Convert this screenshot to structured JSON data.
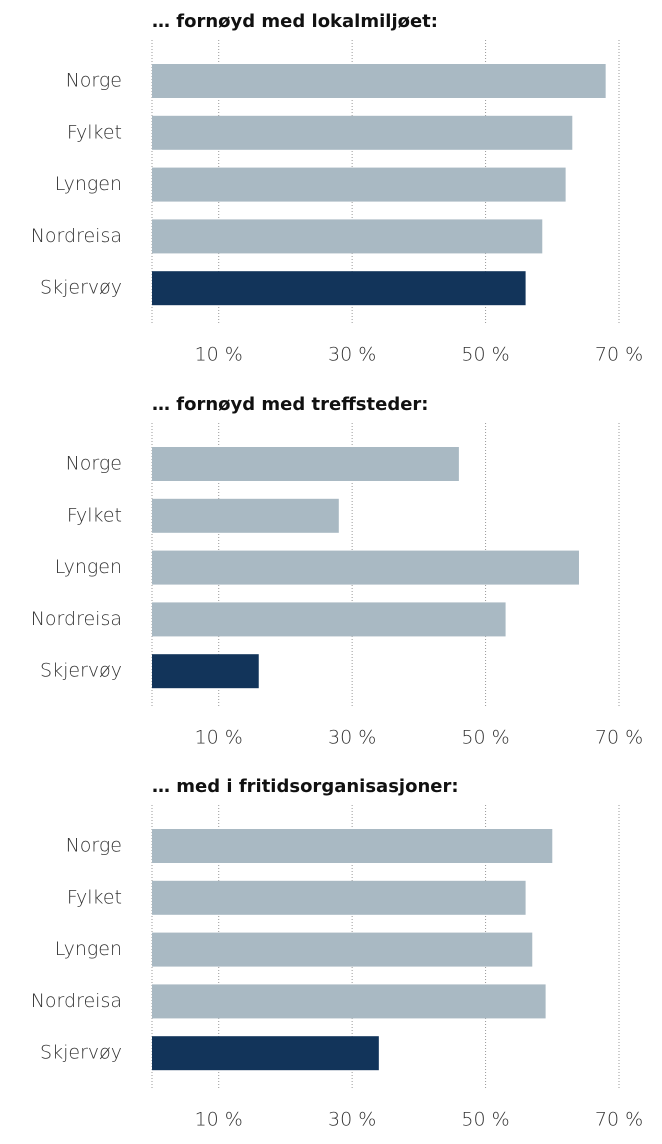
{
  "chart_data": [
    {
      "type": "bar",
      "orientation": "horizontal",
      "title": "… fornøyd med lokalmiljøet:",
      "categories": [
        "Norge",
        "Fylket",
        "Lyngen",
        "Nordreisa",
        "Skjervøy"
      ],
      "values": [
        68,
        63,
        62,
        58.5,
        56
      ],
      "colors": [
        "#a9b9c3",
        "#a9b9c3",
        "#a9b9c3",
        "#a9b9c3",
        "#12345a"
      ],
      "xlim": [
        0,
        70
      ],
      "xticks": [
        {
          "value": 10,
          "label": "10 %"
        },
        {
          "value": 30,
          "label": "30 %"
        },
        {
          "value": 50,
          "label": "50 %"
        },
        {
          "value": 70,
          "label": "70 %"
        }
      ],
      "grid": true
    },
    {
      "type": "bar",
      "orientation": "horizontal",
      "title": "… fornøyd med treffsteder:",
      "categories": [
        "Norge",
        "Fylket",
        "Lyngen",
        "Nordreisa",
        "Skjervøy"
      ],
      "values": [
        46,
        28,
        64,
        53,
        16
      ],
      "colors": [
        "#a9b9c3",
        "#a9b9c3",
        "#a9b9c3",
        "#a9b9c3",
        "#12345a"
      ],
      "xlim": [
        0,
        70
      ],
      "xticks": [
        {
          "value": 10,
          "label": "10 %"
        },
        {
          "value": 30,
          "label": "30 %"
        },
        {
          "value": 50,
          "label": "50 %"
        },
        {
          "value": 70,
          "label": "70 %"
        }
      ],
      "grid": true
    },
    {
      "type": "bar",
      "orientation": "horizontal",
      "title": "… med i fritidsorganisasjoner:",
      "categories": [
        "Norge",
        "Fylket",
        "Lyngen",
        "Nordreisa",
        "Skjervøy"
      ],
      "values": [
        60,
        56,
        57,
        59,
        34
      ],
      "colors": [
        "#a9b9c3",
        "#a9b9c3",
        "#a9b9c3",
        "#a9b9c3",
        "#12345a"
      ],
      "xlim": [
        0,
        70
      ],
      "xticks": [
        {
          "value": 10,
          "label": "10 %"
        },
        {
          "value": 30,
          "label": "30 %"
        },
        {
          "value": 50,
          "label": "50 %"
        },
        {
          "value": 70,
          "label": "70 %"
        }
      ],
      "grid": true
    }
  ]
}
